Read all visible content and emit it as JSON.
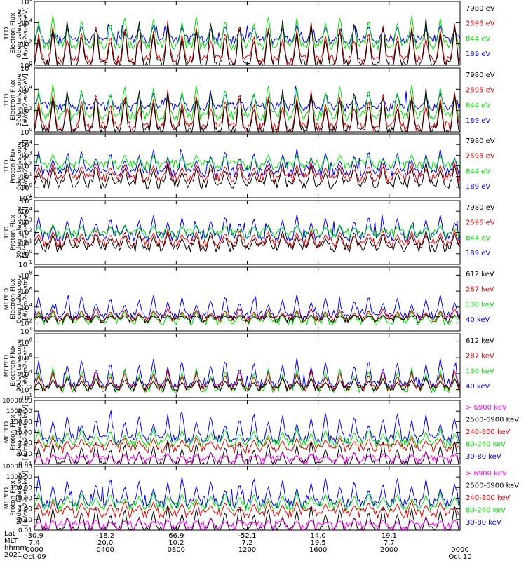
{
  "palette": {
    "black": "#000000",
    "blue": "#0000ee",
    "red": "#dd0000",
    "green": "#00dd00",
    "magenta": "#ff00ff"
  },
  "chart_data": [
    {
      "type": "line",
      "ylabel": [
        "TED",
        "Electron Flux",
        "0deg telescope",
        "[#/cm2-s-str-eV]"
      ],
      "scale": "log",
      "ylim": [
        1,
        1000000
      ],
      "yticks": [
        "10^0",
        "10^2",
        "10^4",
        "10^6"
      ],
      "legend": [
        {
          "name": "7980 eV",
          "color": "#000000"
        },
        {
          "name": "2595 eV",
          "color": "#dd0000"
        },
        {
          "name": "844 eV",
          "color": "#00dd00"
        },
        {
          "name": "189 eV",
          "color": "#0000ee"
        }
      ],
      "profile": {
        "baseline": [
          0.1,
          0.5,
          1.9,
          2.4
        ],
        "peaks": [
          4.5,
          4.2,
          4.8,
          3.8
        ]
      }
    },
    {
      "type": "line",
      "ylabel": [
        "TED",
        "Electron Flux",
        "30deg telescope",
        "[#/cm2-s-str-eV]"
      ],
      "scale": "log",
      "ylim": [
        1,
        1000000
      ],
      "yticks": [
        "10^0",
        "10^2",
        "10^4",
        "10^6"
      ],
      "legend": [
        {
          "name": "7980 eV",
          "color": "#000000"
        },
        {
          "name": "2595 eV",
          "color": "#dd0000"
        },
        {
          "name": "844 eV",
          "color": "#00dd00"
        },
        {
          "name": "189 eV",
          "color": "#0000ee"
        }
      ],
      "profile": {
        "baseline": [
          0.1,
          0.5,
          1.5,
          2.3
        ],
        "peaks": [
          4.2,
          4.0,
          4.6,
          3.7
        ]
      }
    },
    {
      "type": "line",
      "ylabel": [
        "TED",
        "Proton Flux",
        "0deg telescope",
        "[#/cm2-s-str-eV]"
      ],
      "scale": "log",
      "ylim": [
        0.1,
        100000
      ],
      "yticks": [
        "10^-1",
        "10^0",
        "10^1",
        "10^2",
        "10^3",
        "10^4"
      ],
      "legend": [
        {
          "name": "7980 eV",
          "color": "#000000"
        },
        {
          "name": "2595 eV",
          "color": "#dd0000"
        },
        {
          "name": "844 eV",
          "color": "#00dd00"
        },
        {
          "name": "189 eV",
          "color": "#0000ee"
        }
      ],
      "profile": {
        "baseline": [
          0.3,
          0.9,
          2.1,
          1.4
        ],
        "peaks": [
          2.4,
          2.4,
          3.1,
          3.6
        ]
      }
    },
    {
      "type": "line",
      "ylabel": [
        "TED",
        "Proton Flux",
        "30deg telescope",
        "[#/cm2-s-str-eV]"
      ],
      "scale": "log",
      "ylim": [
        0.1,
        100000
      ],
      "yticks": [
        "10^-1",
        "10^0",
        "10^1",
        "10^2",
        "10^3",
        "10^4",
        "10^5"
      ],
      "legend": [
        {
          "name": "7980 eV",
          "color": "#000000"
        },
        {
          "name": "2595 eV",
          "color": "#dd0000"
        },
        {
          "name": "844 eV",
          "color": "#00dd00"
        },
        {
          "name": "189 eV",
          "color": "#0000ee"
        }
      ],
      "profile": {
        "baseline": [
          0.6,
          1.0,
          1.9,
          1.6
        ],
        "peaks": [
          2.2,
          2.3,
          2.8,
          3.7
        ]
      }
    },
    {
      "type": "line",
      "ylabel": [
        "MEPED",
        "Electron Flux",
        "0deg telescope",
        "[#/cm2-s-str]"
      ],
      "scale": "log",
      "ylim": [
        10,
        1000000000
      ],
      "yticks": [
        "10^1",
        "10^2",
        "10^4",
        "10^6",
        "10^8"
      ],
      "legend": [
        {
          "name": "612 keV",
          "color": "#000000"
        },
        {
          "name": "287 keV",
          "color": "#dd0000"
        },
        {
          "name": "130 keV",
          "color": "#00dd00"
        },
        {
          "name": "40 keV",
          "color": "#0000ee"
        }
      ],
      "profile": {
        "baseline": [
          2.5,
          2.6,
          2.2,
          2.9
        ],
        "peaks": [
          3.1,
          3.9,
          3.6,
          5.6
        ]
      }
    },
    {
      "type": "line",
      "ylabel": [
        "MEPED",
        "Electron Flux",
        "90deg telescope",
        "[#/cm2-s-str]"
      ],
      "scale": "log",
      "ylim": [
        10,
        1000000000
      ],
      "yticks": [
        "10^1",
        "10^2",
        "10^4",
        "10^6",
        "10^8"
      ],
      "legend": [
        {
          "name": "612 keV",
          "color": "#000000"
        },
        {
          "name": "287 keV",
          "color": "#dd0000"
        },
        {
          "name": "130 keV",
          "color": "#00dd00"
        },
        {
          "name": "40 keV",
          "color": "#0000ee"
        }
      ],
      "profile": {
        "baseline": [
          2.2,
          2.3,
          2.1,
          2.6
        ],
        "peaks": [
          3.6,
          4.5,
          4.9,
          6.0
        ]
      }
    },
    {
      "type": "line",
      "ylabel": [
        "MEPED",
        "Proton Flux",
        "0deg telescope",
        "[#/cm2-s-str-keV]"
      ],
      "scale": "log",
      "ylim": [
        0.01,
        10000
      ],
      "yticks": [
        "0.01",
        "0.10",
        "1.00",
        "10.00",
        "100.00",
        "1000.00",
        "10000.00"
      ],
      "legend": [
        {
          "name": "> 6900 keV",
          "color": "#ff00ff"
        },
        {
          "name": "2500-6900 keV",
          "color": "#000000"
        },
        {
          "name": "240-800 keV",
          "color": "#dd0000"
        },
        {
          "name": "80-240 keV",
          "color": "#00dd00"
        },
        {
          "name": "30-80 keV",
          "color": "#0000ee"
        }
      ],
      "profile": {
        "baseline": [
          -1.6,
          -2.0,
          -0.5,
          0.0,
          0.35
        ],
        "peaks": [
          -0.9,
          0.3,
          0.6,
          1.4,
          3.0
        ]
      }
    },
    {
      "type": "line",
      "ylabel": [
        "MEPED",
        "Proton Flux",
        "90deg telescope",
        "[#/cm2-s-str-keV]"
      ],
      "scale": "log",
      "ylim": [
        0.01,
        10000
      ],
      "yticks": [
        "0.01",
        "0.10",
        "1.00",
        "10.00",
        "100.00",
        "1000.00",
        "10000.00"
      ],
      "legend": [
        {
          "name": "> 6900 keV",
          "color": "#ff00ff"
        },
        {
          "name": "2500-6900 keV",
          "color": "#000000"
        },
        {
          "name": "240-800 keV",
          "color": "#dd0000"
        },
        {
          "name": "80-240 keV",
          "color": "#00dd00"
        },
        {
          "name": "30-80 keV",
          "color": "#0000ee"
        }
      ],
      "profile": {
        "baseline": [
          -1.6,
          -2.0,
          -0.4,
          0.25,
          0.5
        ],
        "peaks": [
          -0.9,
          0.4,
          0.8,
          1.6,
          3.1
        ]
      }
    }
  ],
  "xaxis": {
    "row_labels": [
      "Lat",
      "MLT",
      "hhmm",
      "2021"
    ],
    "ticks": [
      {
        "lat": "-30.9",
        "mlt": "7.4",
        "hhmm": "0000",
        "date": "Oct 09"
      },
      {
        "lat": "-18.2",
        "mlt": "20.0",
        "hhmm": "0400",
        "date": ""
      },
      {
        "lat": "66.9",
        "mlt": "10.2",
        "hhmm": "0800",
        "date": ""
      },
      {
        "lat": "-52.1",
        "mlt": "7.2",
        "hhmm": "1200",
        "date": ""
      },
      {
        "lat": "14.0",
        "mlt": "19.5",
        "hhmm": "1600",
        "date": ""
      },
      {
        "lat": "19.1",
        "mlt": "7.7",
        "hhmm": "2000",
        "date": ""
      },
      {
        "lat": "",
        "mlt": "",
        "hhmm": "0000",
        "date": "Oct 10"
      }
    ]
  }
}
